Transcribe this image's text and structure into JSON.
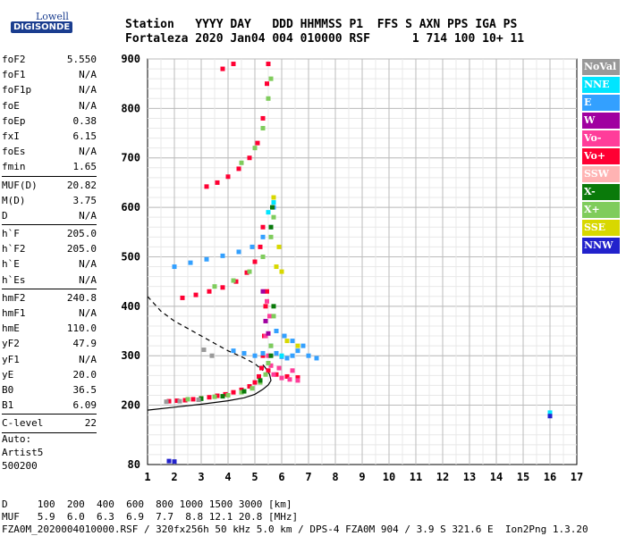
{
  "logo": {
    "line1": "Lowell",
    "line2": "DIGISONDE"
  },
  "header": {
    "line1": "Station   YYYY DAY   DDD HHMMSS P1  FFS S AXN PPS IGA PS",
    "line2": "Fortaleza 2020 Jan04 004 010000 RSF      1 714 100 10+ 11"
  },
  "params": [
    {
      "group": [
        {
          "name": "foF2",
          "value": "5.550"
        },
        {
          "name": "foF1",
          "value": "N/A"
        },
        {
          "name": "foF1p",
          "value": "N/A"
        },
        {
          "name": "foE",
          "value": "N/A"
        },
        {
          "name": "foEp",
          "value": "0.38"
        },
        {
          "name": "fxI",
          "value": "6.15"
        },
        {
          "name": "foEs",
          "value": "N/A"
        },
        {
          "name": "fmin",
          "value": "1.65"
        }
      ]
    },
    {
      "group": [
        {
          "name": "MUF(D)",
          "value": "20.82"
        },
        {
          "name": "M(D)",
          "value": "3.75"
        },
        {
          "name": "D",
          "value": "N/A"
        }
      ]
    },
    {
      "group": [
        {
          "name": "h`F",
          "value": "205.0"
        },
        {
          "name": "h`F2",
          "value": "205.0"
        },
        {
          "name": "h`E",
          "value": "N/A"
        },
        {
          "name": "h`Es",
          "value": "N/A"
        }
      ]
    },
    {
      "group": [
        {
          "name": "hmF2",
          "value": "240.8"
        },
        {
          "name": "hmF1",
          "value": "N/A"
        },
        {
          "name": "hmE",
          "value": "110.0"
        },
        {
          "name": "yF2",
          "value": "47.9"
        },
        {
          "name": "yF1",
          "value": "N/A"
        },
        {
          "name": "yE",
          "value": "20.0"
        },
        {
          "name": "B0",
          "value": "36.5"
        },
        {
          "name": "B1",
          "value": "6.09"
        }
      ]
    },
    {
      "group": [
        {
          "name": "C-level",
          "value": "22"
        }
      ]
    }
  ],
  "auto": {
    "line1": "Auto:",
    "line2": "Artist5",
    "line3": "500200"
  },
  "legend": [
    {
      "label": "NoVal",
      "color": "#999999"
    },
    {
      "label": "NNE",
      "color": "#00e5ff"
    },
    {
      "label": "E",
      "color": "#33a0ff"
    },
    {
      "label": "W",
      "color": "#a000a0"
    },
    {
      "label": "Vo-",
      "color": "#ff3d9a"
    },
    {
      "label": "Vo+",
      "color": "#ff0033"
    },
    {
      "label": "SSW",
      "color": "#ffb3b3"
    },
    {
      "label": "X-",
      "color": "#0a7a0a"
    },
    {
      "label": "X+",
      "color": "#7fcc5c"
    },
    {
      "label": "SSE",
      "color": "#d8d800"
    },
    {
      "label": "NNW",
      "color": "#2222cc"
    }
  ],
  "footer": {
    "line1": "D     100  200  400  600  800 1000 1500 3000 [km]",
    "line2": "MUF   5.9  6.0  6.3  6.9  7.7  8.8 12.1 20.8 [MHz]",
    "line3": "FZA0M_2020004010000.RSF / 320fx256h 50 kHz 5.0 km / DPS-4 FZA0M 904 / 3.9 S 321.6 E  Ion2Png 1.3.20"
  },
  "chart_data": {
    "type": "scatter",
    "xlim": [
      1,
      17
    ],
    "ylim": [
      80,
      900
    ],
    "xticks": [
      "1",
      "2",
      "3",
      "4",
      "5",
      "6",
      "7",
      "8",
      "9",
      "10",
      "11",
      "12",
      "13",
      "14",
      "15",
      "16",
      "17"
    ],
    "yticks": [
      "80",
      "200",
      "300",
      "400",
      "500",
      "600",
      "700",
      "800",
      "900"
    ],
    "grid": true,
    "series": [
      {
        "name": "Vo+",
        "color": "#ff0033",
        "points": [
          [
            1.8,
            208
          ],
          [
            2.1,
            209
          ],
          [
            2.4,
            210
          ],
          [
            2.7,
            212
          ],
          [
            3.0,
            214
          ],
          [
            3.3,
            216
          ],
          [
            3.6,
            219
          ],
          [
            3.9,
            222
          ],
          [
            4.2,
            226
          ],
          [
            4.5,
            231
          ],
          [
            4.8,
            238
          ],
          [
            5.0,
            246
          ],
          [
            5.15,
            258
          ],
          [
            5.25,
            275
          ],
          [
            5.3,
            300
          ],
          [
            5.35,
            340
          ],
          [
            5.4,
            400
          ],
          [
            5.45,
            430
          ],
          [
            2.3,
            417
          ],
          [
            2.8,
            423
          ],
          [
            3.3,
            430
          ],
          [
            3.8,
            438
          ],
          [
            4.3,
            450
          ],
          [
            4.7,
            468
          ],
          [
            5.0,
            490
          ],
          [
            5.2,
            520
          ],
          [
            5.3,
            560
          ],
          [
            3.2,
            642
          ],
          [
            3.6,
            650
          ],
          [
            4.0,
            662
          ],
          [
            4.4,
            678
          ],
          [
            4.8,
            700
          ],
          [
            5.1,
            730
          ],
          [
            5.3,
            780
          ],
          [
            5.45,
            850
          ],
          [
            5.5,
            890
          ],
          [
            3.8,
            880
          ],
          [
            4.2,
            890
          ],
          [
            5.5,
            270
          ],
          [
            5.8,
            262
          ],
          [
            6.2,
            258
          ],
          [
            6.6,
            256
          ]
        ]
      },
      {
        "name": "Vo-",
        "color": "#ff3d9a",
        "points": [
          [
            5.4,
            340
          ],
          [
            5.5,
            300
          ],
          [
            5.6,
            280
          ],
          [
            5.7,
            262
          ],
          [
            6.0,
            255
          ],
          [
            6.3,
            252
          ],
          [
            6.6,
            250
          ],
          [
            5.45,
            410
          ],
          [
            5.55,
            380
          ],
          [
            5.9,
            275
          ],
          [
            6.4,
            270
          ]
        ]
      },
      {
        "name": "E",
        "color": "#33a0ff",
        "points": [
          [
            5.6,
            320
          ],
          [
            5.8,
            305
          ],
          [
            6.0,
            298
          ],
          [
            6.2,
            295
          ],
          [
            6.4,
            300
          ],
          [
            6.6,
            310
          ],
          [
            6.8,
            320
          ],
          [
            7.0,
            300
          ],
          [
            7.3,
            295
          ],
          [
            5.8,
            350
          ],
          [
            6.1,
            340
          ],
          [
            6.4,
            330
          ],
          [
            4.2,
            310
          ],
          [
            4.6,
            305
          ],
          [
            5.0,
            300
          ],
          [
            5.3,
            305
          ],
          [
            2.0,
            480
          ],
          [
            2.6,
            488
          ],
          [
            3.2,
            495
          ],
          [
            3.8,
            502
          ],
          [
            4.4,
            510
          ],
          [
            4.9,
            520
          ],
          [
            5.3,
            540
          ],
          [
            5.6,
            560
          ],
          [
            5.7,
            600
          ]
        ]
      },
      {
        "name": "X+",
        "color": "#7fcc5c",
        "points": [
          [
            2.5,
            212
          ],
          [
            3.0,
            214
          ],
          [
            3.5,
            217
          ],
          [
            4.0,
            220
          ],
          [
            4.5,
            226
          ],
          [
            4.9,
            234
          ],
          [
            5.2,
            246
          ],
          [
            5.4,
            262
          ],
          [
            5.5,
            285
          ],
          [
            5.6,
            320
          ],
          [
            5.7,
            380
          ],
          [
            3.5,
            440
          ],
          [
            4.2,
            452
          ],
          [
            4.8,
            470
          ],
          [
            5.3,
            500
          ],
          [
            5.6,
            540
          ],
          [
            5.7,
            580
          ],
          [
            4.5,
            690
          ],
          [
            5.0,
            720
          ],
          [
            5.3,
            760
          ],
          [
            5.5,
            820
          ],
          [
            5.6,
            860
          ]
        ]
      },
      {
        "name": "X-",
        "color": "#0a7a0a",
        "points": [
          [
            3.0,
            213
          ],
          [
            3.8,
            218
          ],
          [
            4.6,
            228
          ],
          [
            5.2,
            250
          ],
          [
            5.6,
            300
          ],
          [
            5.7,
            400
          ],
          [
            5.6,
            560
          ],
          [
            5.65,
            600
          ]
        ]
      },
      {
        "name": "SSE",
        "color": "#d8d800",
        "points": [
          [
            5.8,
            480
          ],
          [
            6.0,
            470
          ],
          [
            5.9,
            520
          ],
          [
            6.2,
            330
          ],
          [
            6.6,
            320
          ],
          [
            5.7,
            620
          ]
        ]
      },
      {
        "name": "NoVal",
        "color": "#999999",
        "points": [
          [
            1.7,
            207
          ],
          [
            2.2,
            208
          ],
          [
            2.9,
            211
          ],
          [
            3.4,
            300
          ],
          [
            3.1,
            312
          ]
        ]
      },
      {
        "name": "NNE",
        "color": "#00e5ff",
        "points": [
          [
            5.5,
            590
          ],
          [
            5.7,
            610
          ],
          [
            6.0,
            300
          ],
          [
            16.0,
            185
          ]
        ]
      },
      {
        "name": "W",
        "color": "#a000a0",
        "points": [
          [
            5.3,
            430
          ],
          [
            5.4,
            370
          ],
          [
            5.5,
            345
          ]
        ]
      },
      {
        "name": "NNW",
        "color": "#2222cc",
        "points": [
          [
            1.8,
            87
          ],
          [
            2.0,
            86
          ],
          [
            16.0,
            178
          ]
        ]
      }
    ],
    "lines": [
      {
        "name": "profile",
        "style": "solid",
        "points": [
          [
            1.0,
            190
          ],
          [
            2.0,
            196
          ],
          [
            3.0,
            202
          ],
          [
            4.0,
            209
          ],
          [
            4.6,
            215
          ],
          [
            5.0,
            222
          ],
          [
            5.3,
            232
          ],
          [
            5.5,
            241
          ],
          [
            5.6,
            250
          ],
          [
            5.55,
            262
          ],
          [
            5.4,
            275
          ],
          [
            5.3,
            282
          ]
        ]
      },
      {
        "name": "muf",
        "style": "dashed",
        "points": [
          [
            1.0,
            420
          ],
          [
            1.5,
            390
          ],
          [
            2.0,
            370
          ],
          [
            2.5,
            355
          ],
          [
            3.0,
            340
          ],
          [
            3.5,
            325
          ],
          [
            4.0,
            310
          ],
          [
            4.5,
            298
          ],
          [
            5.0,
            284
          ],
          [
            5.3,
            270
          ]
        ]
      }
    ]
  }
}
